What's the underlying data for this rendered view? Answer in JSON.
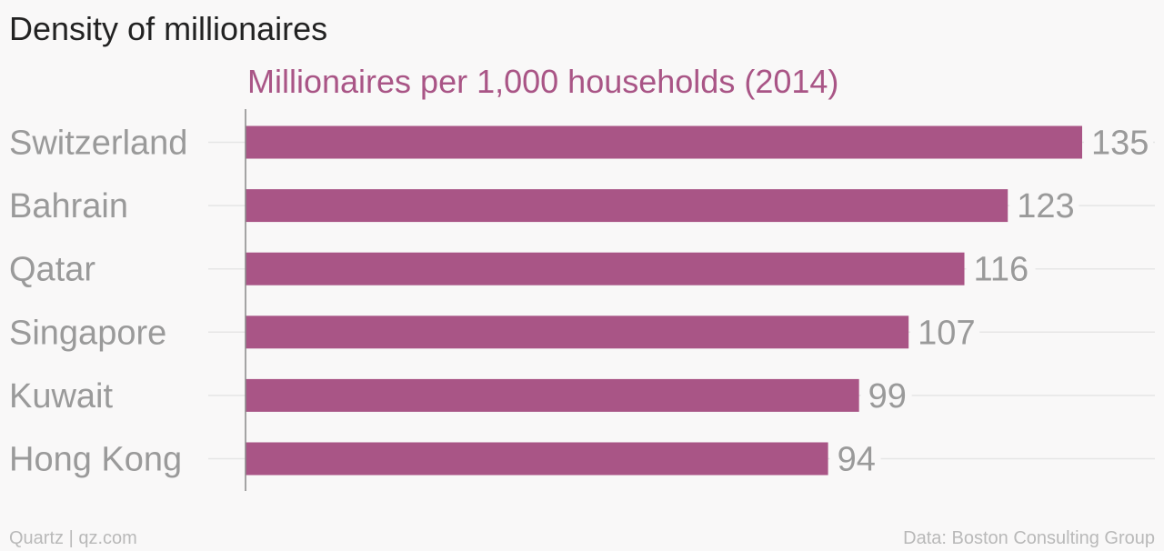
{
  "header": {
    "title": "Density of millionaires"
  },
  "footer": {
    "source_left": "Quartz | qz.com",
    "source_right": "Data: Boston Consulting Group"
  },
  "chart_data": {
    "type": "bar",
    "orientation": "horizontal",
    "title": "Density of millionaires",
    "subtitle": "Millionaires per 1,000 households (2014)",
    "xlabel": "",
    "ylabel": "",
    "categories": [
      "Switzerland",
      "Bahrain",
      "Qatar",
      "Singapore",
      "Kuwait",
      "Hong Kong"
    ],
    "values": [
      135,
      123,
      116,
      107,
      99,
      94
    ],
    "value_labels": [
      "135",
      "123",
      "116",
      "107",
      "99",
      "94"
    ],
    "xlim": [
      0,
      135
    ],
    "grid": true,
    "legend": "none",
    "colors": {
      "bar": "#a95586",
      "subtitle": "#a95586",
      "category_label": "#9a9a9a",
      "value_label": "#9a9a9a",
      "grid": "#e6e6e6",
      "axis": "#888888"
    }
  }
}
